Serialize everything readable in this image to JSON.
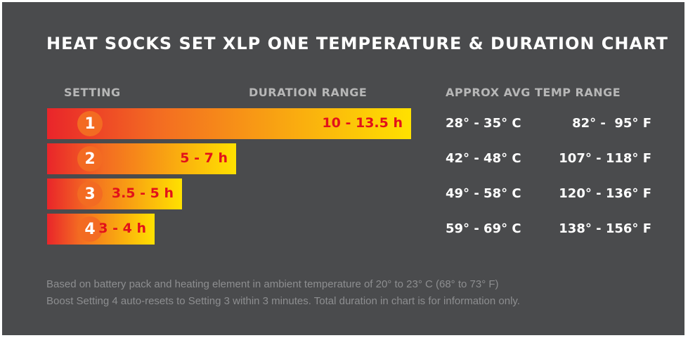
{
  "chart_data": {
    "type": "bar",
    "title": "HEAT SOCKS SET XLP ONE TEMPERATURE & DURATION CHART",
    "headers": {
      "setting": "SETTING",
      "duration": "DURATION RANGE",
      "temp": "APPROX AVG TEMP RANGE"
    },
    "categories": [
      "1",
      "2",
      "3",
      "4"
    ],
    "duration_labels": [
      "10 - 13.5 h",
      "5 - 7 h",
      "3.5 - 5 h",
      "3 - 4 h"
    ],
    "values": [
      13.5,
      7,
      5,
      4
    ],
    "temp_c": [
      "28° - 35° C",
      "42° - 48° C",
      "49° - 58° C",
      "59° - 69° C"
    ],
    "temp_f": [
      "82° -  95° F",
      "107° - 118° F",
      "120° - 136° F",
      "138° - 156° F"
    ],
    "bar_gradient": [
      "#e9252a",
      "#f36b22",
      "#ffe100"
    ],
    "colors": {
      "background": "#4a4b4d",
      "circle": "#f36b22",
      "duration_text": "#e2111a"
    },
    "notes": [
      "Based on battery pack and heating element in ambient temperature of 20° to 23° C (68° to 73° F)",
      "Boost Setting 4 auto-resets to Setting 3 within 3 minutes. Total duration in chart is for information only."
    ]
  }
}
